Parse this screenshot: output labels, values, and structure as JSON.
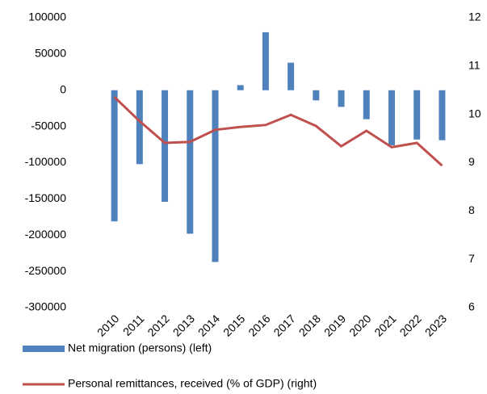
{
  "chart_data": {
    "type": "bar_line",
    "categories": [
      "2010",
      "2011",
      "2012",
      "2013",
      "2014",
      "2015",
      "2016",
      "2017",
      "2018",
      "2019",
      "2020",
      "2021",
      "2022",
      "2023"
    ],
    "series": [
      {
        "name": "Net migration (persons) (left)",
        "type": "bar",
        "color": "#4f81bd",
        "axis": "y",
        "values": [
          -181000,
          -102000,
          -154000,
          -198000,
          -237000,
          7000,
          80000,
          38000,
          -14000,
          -23000,
          -40000,
          -76000,
          -68000,
          -69000
        ]
      },
      {
        "name": "Personal remittances, received (% of GDP) (right)",
        "type": "line",
        "color": "#c0504d",
        "axis": "y2",
        "values": [
          10.36,
          9.86,
          9.41,
          9.43,
          9.68,
          9.74,
          9.78,
          9.99,
          9.76,
          9.34,
          9.66,
          9.32,
          9.41,
          8.94
        ]
      }
    ],
    "ylim": [
      -300000,
      100000
    ],
    "yticks": [
      -300000,
      -250000,
      -200000,
      -150000,
      -100000,
      -50000,
      0,
      50000,
      100000
    ],
    "y2lim": [
      6,
      12
    ],
    "y2ticks": [
      6,
      7,
      8,
      9,
      10,
      11,
      12
    ],
    "grid": false,
    "legend": "bottom"
  }
}
